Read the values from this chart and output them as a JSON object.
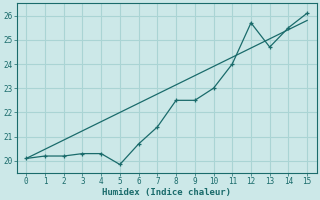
{
  "title": "",
  "xlabel": "Humidex (Indice chaleur)",
  "ylabel": "",
  "bg_color": "#cce8e8",
  "grid_color": "#aad4d4",
  "line_color": "#1a6b6b",
  "xlim": [
    -0.5,
    15.5
  ],
  "ylim": [
    19.5,
    26.5
  ],
  "xticks": [
    0,
    1,
    2,
    3,
    4,
    5,
    6,
    7,
    8,
    9,
    10,
    11,
    12,
    13,
    14,
    15
  ],
  "yticks": [
    20,
    21,
    22,
    23,
    24,
    25,
    26
  ],
  "data_x": [
    0,
    1,
    2,
    3,
    4,
    5,
    6,
    7,
    8,
    9,
    10,
    11,
    12,
    13,
    14,
    15
  ],
  "data_y": [
    20.1,
    20.2,
    20.2,
    20.3,
    20.3,
    19.85,
    20.7,
    21.4,
    22.5,
    22.5,
    23.0,
    24.0,
    25.7,
    24.7,
    25.5,
    26.1
  ],
  "trend_x": [
    0,
    15
  ],
  "trend_y": [
    20.1,
    25.8
  ]
}
